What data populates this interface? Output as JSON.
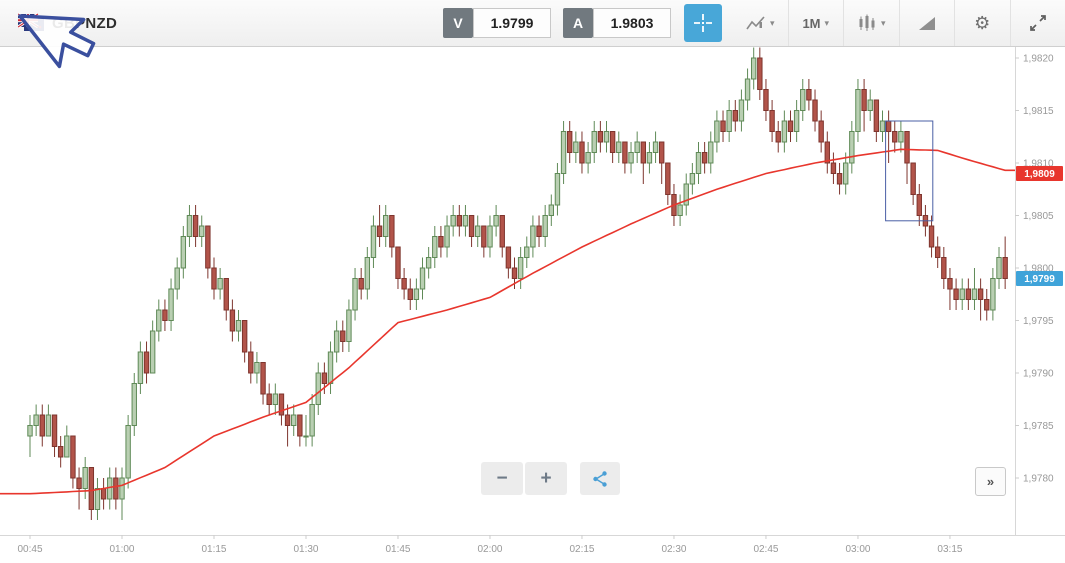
{
  "toolbar": {
    "symbol": "GBPNZD",
    "bid_label": "V",
    "bid_price": "1.9799",
    "ask_label": "A",
    "ask_price": "1.9803",
    "timeframe": "1M",
    "caret": "▾",
    "gear": "⚙"
  },
  "controls": {
    "zoom_out": "−",
    "zoom_in": "+",
    "collapse": "»"
  },
  "chart_data": {
    "type": "candlestick",
    "symbol": "GBPNZD",
    "timeframe_minutes": 1,
    "start_time": "00:45",
    "x_tick_labels": [
      "00:45",
      "01:00",
      "01:15",
      "01:30",
      "01:45",
      "02:00",
      "02:15",
      "02:30",
      "02:45",
      "03:00",
      "03:15"
    ],
    "x_tick_interval_minutes": 15,
    "y_tick_labels": [
      "1,9820",
      "1,9815",
      "1,9810",
      "1,9805",
      "1,9800",
      "1,9795",
      "1,9790",
      "1,9785",
      "1,9780"
    ],
    "y_range": [
      1.9776,
      1.9821
    ],
    "grid": false,
    "colors": {
      "up_fill": "#b9cfb2",
      "up_stroke": "#5f8a57",
      "down_fill": "#b2544a",
      "down_stroke": "#7e352e",
      "ma": "#e8362d",
      "selection": "#4a5fa5",
      "axis_text": "#999999",
      "axis_line": "#d7d7d7",
      "last_tag": "#3fa3d9",
      "ma_tag": "#e8362d"
    },
    "candles": [
      [
        1.9784,
        1.9786,
        1.9782,
        1.9785
      ],
      [
        1.9785,
        1.9787,
        1.9784,
        1.9786
      ],
      [
        1.9786,
        1.9787,
        1.9783,
        1.9784
      ],
      [
        1.9784,
        1.9787,
        1.9784,
        1.9786
      ],
      [
        1.9786,
        1.9786,
        1.9782,
        1.9783
      ],
      [
        1.9783,
        1.9784,
        1.9781,
        1.9782
      ],
      [
        1.9782,
        1.9785,
        1.9782,
        1.9784
      ],
      [
        1.9784,
        1.9784,
        1.9779,
        1.978
      ],
      [
        1.978,
        1.9781,
        1.9777,
        1.9779
      ],
      [
        1.9779,
        1.9782,
        1.9778,
        1.9781
      ],
      [
        1.9781,
        1.9781,
        1.9776,
        1.9777
      ],
      [
        1.9777,
        1.978,
        1.9776,
        1.9779
      ],
      [
        1.9779,
        1.978,
        1.9777,
        1.9778
      ],
      [
        1.9778,
        1.9781,
        1.9777,
        1.978
      ],
      [
        1.978,
        1.9781,
        1.9777,
        1.9778
      ],
      [
        1.9778,
        1.9781,
        1.9776,
        1.978
      ],
      [
        1.978,
        1.9786,
        1.9779,
        1.9785
      ],
      [
        1.9785,
        1.979,
        1.9784,
        1.9789
      ],
      [
        1.9789,
        1.9793,
        1.9788,
        1.9792
      ],
      [
        1.9792,
        1.9793,
        1.9789,
        1.979
      ],
      [
        1.979,
        1.9795,
        1.979,
        1.9794
      ],
      [
        1.9794,
        1.9797,
        1.9793,
        1.9796
      ],
      [
        1.9796,
        1.9797,
        1.9794,
        1.9795
      ],
      [
        1.9795,
        1.9799,
        1.9794,
        1.9798
      ],
      [
        1.9798,
        1.9801,
        1.9797,
        1.98
      ],
      [
        1.98,
        1.9804,
        1.9799,
        1.9803
      ],
      [
        1.9803,
        1.9806,
        1.9802,
        1.9805
      ],
      [
        1.9805,
        1.9806,
        1.9802,
        1.9803
      ],
      [
        1.9803,
        1.9805,
        1.9802,
        1.9804
      ],
      [
        1.9804,
        1.9804,
        1.9799,
        1.98
      ],
      [
        1.98,
        1.9801,
        1.9797,
        1.9798
      ],
      [
        1.9798,
        1.98,
        1.9797,
        1.9799
      ],
      [
        1.9799,
        1.9799,
        1.9795,
        1.9796
      ],
      [
        1.9796,
        1.9797,
        1.9793,
        1.9794
      ],
      [
        1.9794,
        1.9796,
        1.9793,
        1.9795
      ],
      [
        1.9795,
        1.9795,
        1.9791,
        1.9792
      ],
      [
        1.9792,
        1.9793,
        1.9789,
        1.979
      ],
      [
        1.979,
        1.9792,
        1.9789,
        1.9791
      ],
      [
        1.9791,
        1.9791,
        1.9787,
        1.9788
      ],
      [
        1.9788,
        1.9789,
        1.9786,
        1.9787
      ],
      [
        1.9787,
        1.9789,
        1.9786,
        1.9788
      ],
      [
        1.9788,
        1.9788,
        1.9785,
        1.9786
      ],
      [
        1.9786,
        1.9787,
        1.9783,
        1.9785
      ],
      [
        1.9785,
        1.9787,
        1.9784,
        1.9786
      ],
      [
        1.9786,
        1.9786,
        1.9783,
        1.9784
      ],
      [
        1.9784,
        1.9786,
        1.9783,
        1.9784
      ],
      [
        1.9784,
        1.9788,
        1.9783,
        1.9787
      ],
      [
        1.9787,
        1.9791,
        1.9786,
        1.979
      ],
      [
        1.979,
        1.9791,
        1.9788,
        1.9789
      ],
      [
        1.9789,
        1.9793,
        1.9788,
        1.9792
      ],
      [
        1.9792,
        1.9795,
        1.9791,
        1.9794
      ],
      [
        1.9794,
        1.9795,
        1.9792,
        1.9793
      ],
      [
        1.9793,
        1.9797,
        1.9792,
        1.9796
      ],
      [
        1.9796,
        1.98,
        1.9795,
        1.9799
      ],
      [
        1.9799,
        1.98,
        1.9797,
        1.9798
      ],
      [
        1.9798,
        1.9802,
        1.9797,
        1.9801
      ],
      [
        1.9801,
        1.9805,
        1.98,
        1.9804
      ],
      [
        1.9804,
        1.9806,
        1.9802,
        1.9803
      ],
      [
        1.9803,
        1.9806,
        1.9802,
        1.9805
      ],
      [
        1.9805,
        1.9805,
        1.9801,
        1.9802
      ],
      [
        1.9802,
        1.9802,
        1.9798,
        1.9799
      ],
      [
        1.9799,
        1.98,
        1.9797,
        1.9798
      ],
      [
        1.9798,
        1.9799,
        1.9796,
        1.9797
      ],
      [
        1.9797,
        1.9799,
        1.9796,
        1.9798
      ],
      [
        1.9798,
        1.9801,
        1.9797,
        1.98
      ],
      [
        1.98,
        1.9802,
        1.9799,
        1.9801
      ],
      [
        1.9801,
        1.9804,
        1.98,
        1.9803
      ],
      [
        1.9803,
        1.9804,
        1.9801,
        1.9802
      ],
      [
        1.9802,
        1.9805,
        1.9801,
        1.9804
      ],
      [
        1.9804,
        1.9806,
        1.9803,
        1.9805
      ],
      [
        1.9805,
        1.9806,
        1.9803,
        1.9804
      ],
      [
        1.9804,
        1.9806,
        1.9803,
        1.9805
      ],
      [
        1.9805,
        1.9805,
        1.9802,
        1.9803
      ],
      [
        1.9803,
        1.9805,
        1.9802,
        1.9804
      ],
      [
        1.9804,
        1.9804,
        1.9801,
        1.9802
      ],
      [
        1.9802,
        1.9805,
        1.9801,
        1.9804
      ],
      [
        1.9804,
        1.9806,
        1.9803,
        1.9805
      ],
      [
        1.9805,
        1.9805,
        1.9801,
        1.9802
      ],
      [
        1.9802,
        1.9802,
        1.9799,
        1.98
      ],
      [
        1.98,
        1.9801,
        1.9798,
        1.9799
      ],
      [
        1.9799,
        1.9802,
        1.9798,
        1.9801
      ],
      [
        1.9801,
        1.9803,
        1.98,
        1.9802
      ],
      [
        1.9802,
        1.9805,
        1.9801,
        1.9804
      ],
      [
        1.9804,
        1.9805,
        1.9802,
        1.9803
      ],
      [
        1.9803,
        1.9806,
        1.9802,
        1.9805
      ],
      [
        1.9805,
        1.9807,
        1.9804,
        1.9806
      ],
      [
        1.9806,
        1.981,
        1.9805,
        1.9809
      ],
      [
        1.9809,
        1.9814,
        1.9808,
        1.9813
      ],
      [
        1.9813,
        1.9814,
        1.981,
        1.9811
      ],
      [
        1.9811,
        1.9813,
        1.981,
        1.9812
      ],
      [
        1.9812,
        1.9813,
        1.9809,
        1.981
      ],
      [
        1.981,
        1.9812,
        1.9809,
        1.9811
      ],
      [
        1.9811,
        1.9814,
        1.981,
        1.9813
      ],
      [
        1.9813,
        1.9814,
        1.9811,
        1.9812
      ],
      [
        1.9812,
        1.9814,
        1.9811,
        1.9813
      ],
      [
        1.9813,
        1.9813,
        1.981,
        1.9811
      ],
      [
        1.9811,
        1.9813,
        1.981,
        1.9812
      ],
      [
        1.9812,
        1.9812,
        1.9809,
        1.981
      ],
      [
        1.981,
        1.9812,
        1.9809,
        1.9811
      ],
      [
        1.9811,
        1.9813,
        1.981,
        1.9812
      ],
      [
        1.9812,
        1.9812,
        1.9808,
        1.981
      ],
      [
        1.981,
        1.9812,
        1.9809,
        1.9811
      ],
      [
        1.9811,
        1.9813,
        1.981,
        1.9812
      ],
      [
        1.9812,
        1.9812,
        1.9808,
        1.981
      ],
      [
        1.981,
        1.981,
        1.9806,
        1.9807
      ],
      [
        1.9807,
        1.9808,
        1.9804,
        1.9805
      ],
      [
        1.9805,
        1.9807,
        1.9804,
        1.9806
      ],
      [
        1.9806,
        1.9809,
        1.9805,
        1.9808
      ],
      [
        1.9808,
        1.981,
        1.9807,
        1.9809
      ],
      [
        1.9809,
        1.9812,
        1.9808,
        1.9811
      ],
      [
        1.9811,
        1.9812,
        1.9809,
        1.981
      ],
      [
        1.981,
        1.9813,
        1.9809,
        1.9812
      ],
      [
        1.9812,
        1.9815,
        1.9811,
        1.9814
      ],
      [
        1.9814,
        1.9815,
        1.9812,
        1.9813
      ],
      [
        1.9813,
        1.9816,
        1.9812,
        1.9815
      ],
      [
        1.9815,
        1.9816,
        1.9813,
        1.9814
      ],
      [
        1.9814,
        1.9817,
        1.9813,
        1.9816
      ],
      [
        1.9816,
        1.9819,
        1.9815,
        1.9818
      ],
      [
        1.9818,
        1.9821,
        1.9817,
        1.982
      ],
      [
        1.982,
        1.9821,
        1.9816,
        1.9817
      ],
      [
        1.9817,
        1.9818,
        1.9814,
        1.9815
      ],
      [
        1.9815,
        1.9816,
        1.9812,
        1.9813
      ],
      [
        1.9813,
        1.9814,
        1.9811,
        1.9812
      ],
      [
        1.9812,
        1.9815,
        1.9811,
        1.9814
      ],
      [
        1.9814,
        1.9815,
        1.9812,
        1.9813
      ],
      [
        1.9813,
        1.9816,
        1.9812,
        1.9815
      ],
      [
        1.9815,
        1.9818,
        1.9814,
        1.9817
      ],
      [
        1.9817,
        1.9818,
        1.9815,
        1.9816
      ],
      [
        1.9816,
        1.9817,
        1.9813,
        1.9814
      ],
      [
        1.9814,
        1.9815,
        1.9811,
        1.9812
      ],
      [
        1.9812,
        1.9813,
        1.9809,
        1.981
      ],
      [
        1.981,
        1.9811,
        1.9808,
        1.9809
      ],
      [
        1.9809,
        1.981,
        1.9807,
        1.9808
      ],
      [
        1.9808,
        1.9811,
        1.9807,
        1.981
      ],
      [
        1.981,
        1.9814,
        1.9809,
        1.9813
      ],
      [
        1.9813,
        1.9818,
        1.9812,
        1.9817
      ],
      [
        1.9817,
        1.9818,
        1.9813,
        1.9815
      ],
      [
        1.9815,
        1.9817,
        1.9814,
        1.9816
      ],
      [
        1.9816,
        1.9816,
        1.9812,
        1.9813
      ],
      [
        1.9813,
        1.9815,
        1.9812,
        1.9814
      ],
      [
        1.9814,
        1.9815,
        1.981,
        1.9813
      ],
      [
        1.9813,
        1.9814,
        1.9811,
        1.9812
      ],
      [
        1.9812,
        1.9814,
        1.9811,
        1.9813
      ],
      [
        1.9813,
        1.9813,
        1.9808,
        1.981
      ],
      [
        1.981,
        1.981,
        1.9806,
        1.9807
      ],
      [
        1.9807,
        1.9808,
        1.9804,
        1.9805
      ],
      [
        1.9805,
        1.9806,
        1.9803,
        1.9804
      ],
      [
        1.9804,
        1.9805,
        1.9801,
        1.9802
      ],
      [
        1.9802,
        1.9803,
        1.98,
        1.9801
      ],
      [
        1.9801,
        1.9802,
        1.9798,
        1.9799
      ],
      [
        1.9799,
        1.98,
        1.9796,
        1.9798
      ],
      [
        1.9798,
        1.9799,
        1.9796,
        1.9797
      ],
      [
        1.9797,
        1.9799,
        1.9796,
        1.9798
      ],
      [
        1.9798,
        1.9799,
        1.9796,
        1.9797
      ],
      [
        1.9797,
        1.98,
        1.9796,
        1.9798
      ],
      [
        1.9798,
        1.9799,
        1.9795,
        1.9797
      ],
      [
        1.9797,
        1.9798,
        1.9795,
        1.9796
      ],
      [
        1.9796,
        1.98,
        1.9795,
        1.9799
      ],
      [
        1.9799,
        1.9802,
        1.9798,
        1.9801
      ],
      [
        1.9801,
        1.9803,
        1.9798,
        1.9799
      ]
    ],
    "ma_anchors": [
      [
        0,
        1.97785
      ],
      [
        10,
        1.97788
      ],
      [
        15,
        1.97793
      ],
      [
        22,
        1.9781
      ],
      [
        30,
        1.9784
      ],
      [
        38,
        1.97858
      ],
      [
        45,
        1.97872
      ],
      [
        52,
        1.97905
      ],
      [
        60,
        1.97948
      ],
      [
        68,
        1.9796
      ],
      [
        75,
        1.97972
      ],
      [
        82,
        1.97995
      ],
      [
        90,
        1.9802
      ],
      [
        98,
        1.98042
      ],
      [
        105,
        1.9806
      ],
      [
        112,
        1.98075
      ],
      [
        120,
        1.9809
      ],
      [
        128,
        1.981
      ],
      [
        135,
        1.98107
      ],
      [
        142,
        1.98113
      ],
      [
        148,
        1.98112
      ],
      [
        153,
        1.98103
      ],
      [
        159,
        1.98093
      ]
    ],
    "price_tags": [
      {
        "name": "ma-price-tag",
        "label": "1,9809",
        "price": 1.9809,
        "color": "#e8362d"
      },
      {
        "name": "last-price-tag",
        "label": "1,9799",
        "price": 1.9799,
        "color": "#3fa3d9"
      }
    ],
    "selection_box": {
      "t_start": 139.5,
      "t_end": 147.2,
      "price_top": 1.9814,
      "price_bottom": 1.98045
    }
  }
}
